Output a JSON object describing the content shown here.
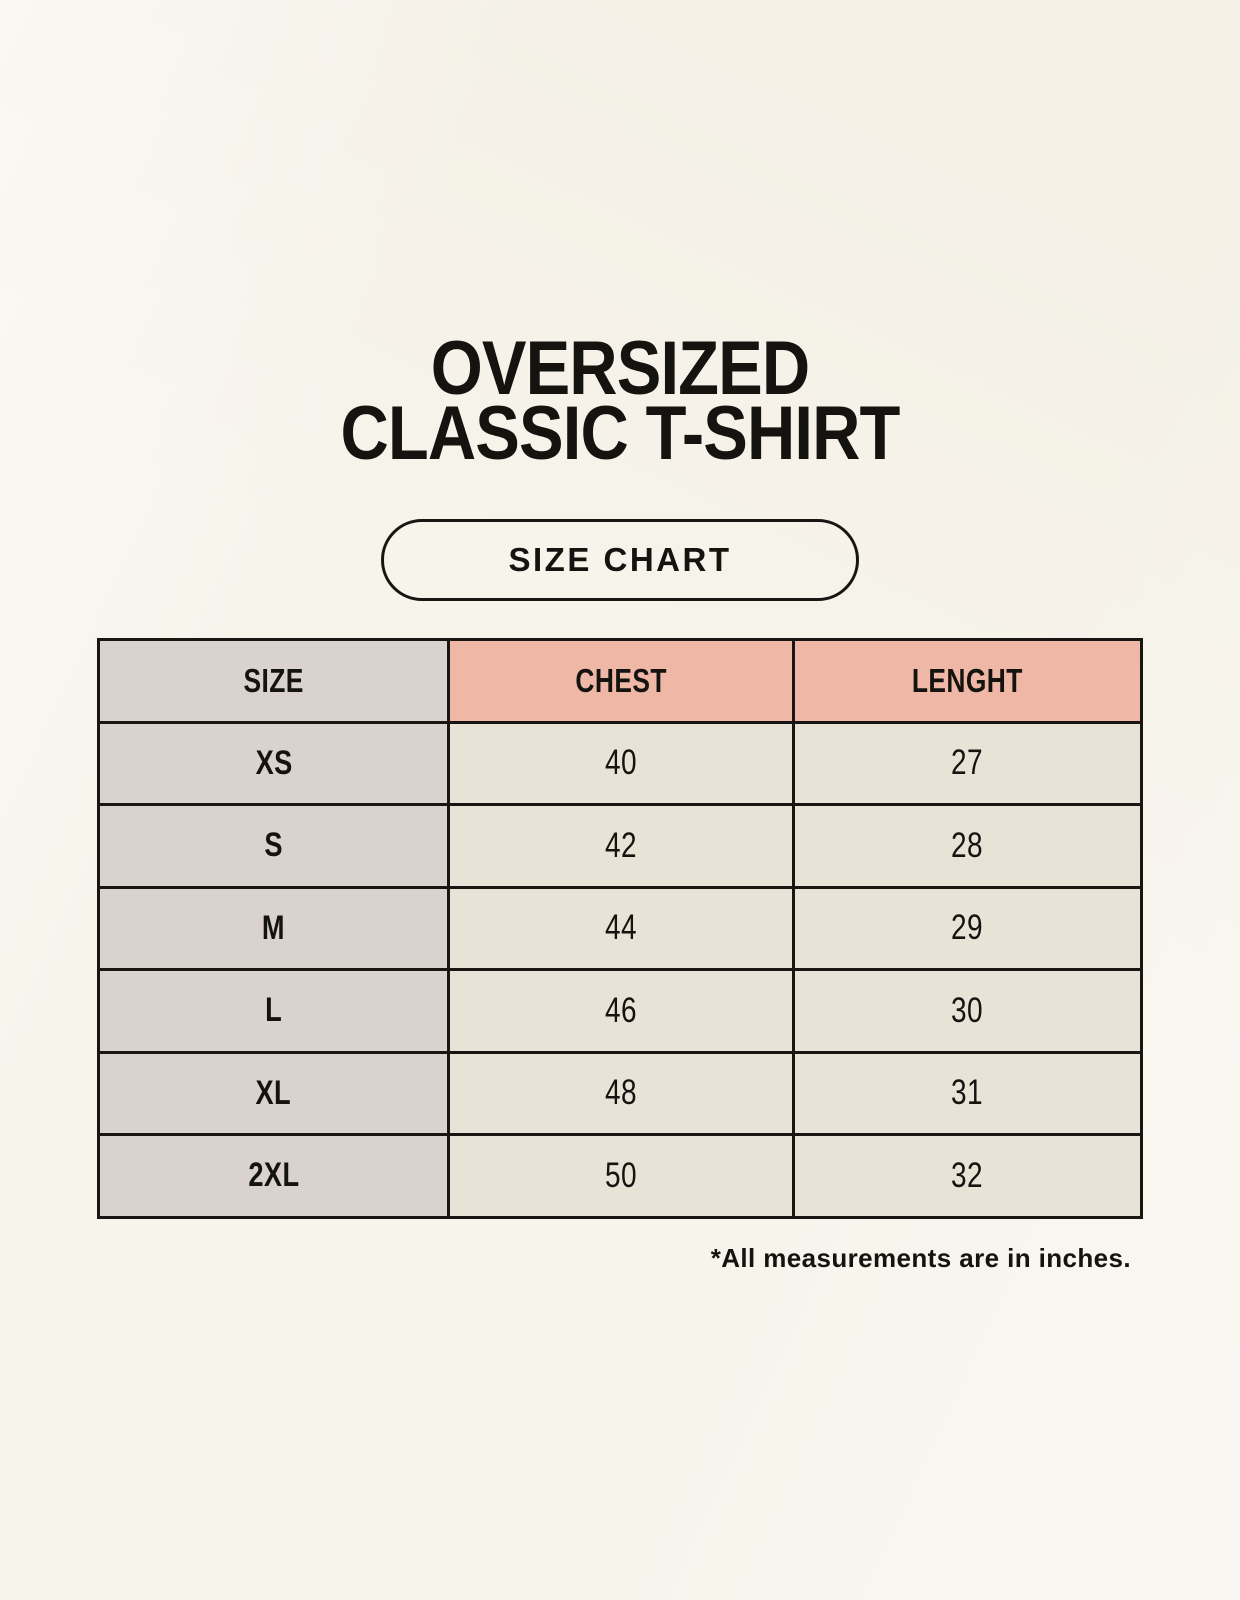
{
  "header": {
    "title_line1": "OVERSIZED",
    "title_line2": "CLASSIC T-SHIRT",
    "badge_label": "SIZE CHART"
  },
  "chart_data": {
    "type": "table",
    "title": "OVERSIZED CLASSIC T-SHIRT size chart",
    "columns": [
      "SIZE",
      "CHEST",
      "LENGHT"
    ],
    "rows": [
      [
        "XS",
        "40",
        "27"
      ],
      [
        "S",
        "42",
        "28"
      ],
      [
        "M",
        "44",
        "29"
      ],
      [
        "L",
        "46",
        "30"
      ],
      [
        "XL",
        "48",
        "31"
      ],
      [
        "2XL",
        "50",
        "32"
      ]
    ],
    "units": "inches"
  },
  "footer": {
    "note": "*All measurements are in inches."
  },
  "colors": {
    "background": "#f7f4ec",
    "label_bg": "#dad3cd",
    "accent_bg": "#efb7a5",
    "value_bg": "#e9e2d7",
    "border": "#181512",
    "text": "#15130f"
  }
}
